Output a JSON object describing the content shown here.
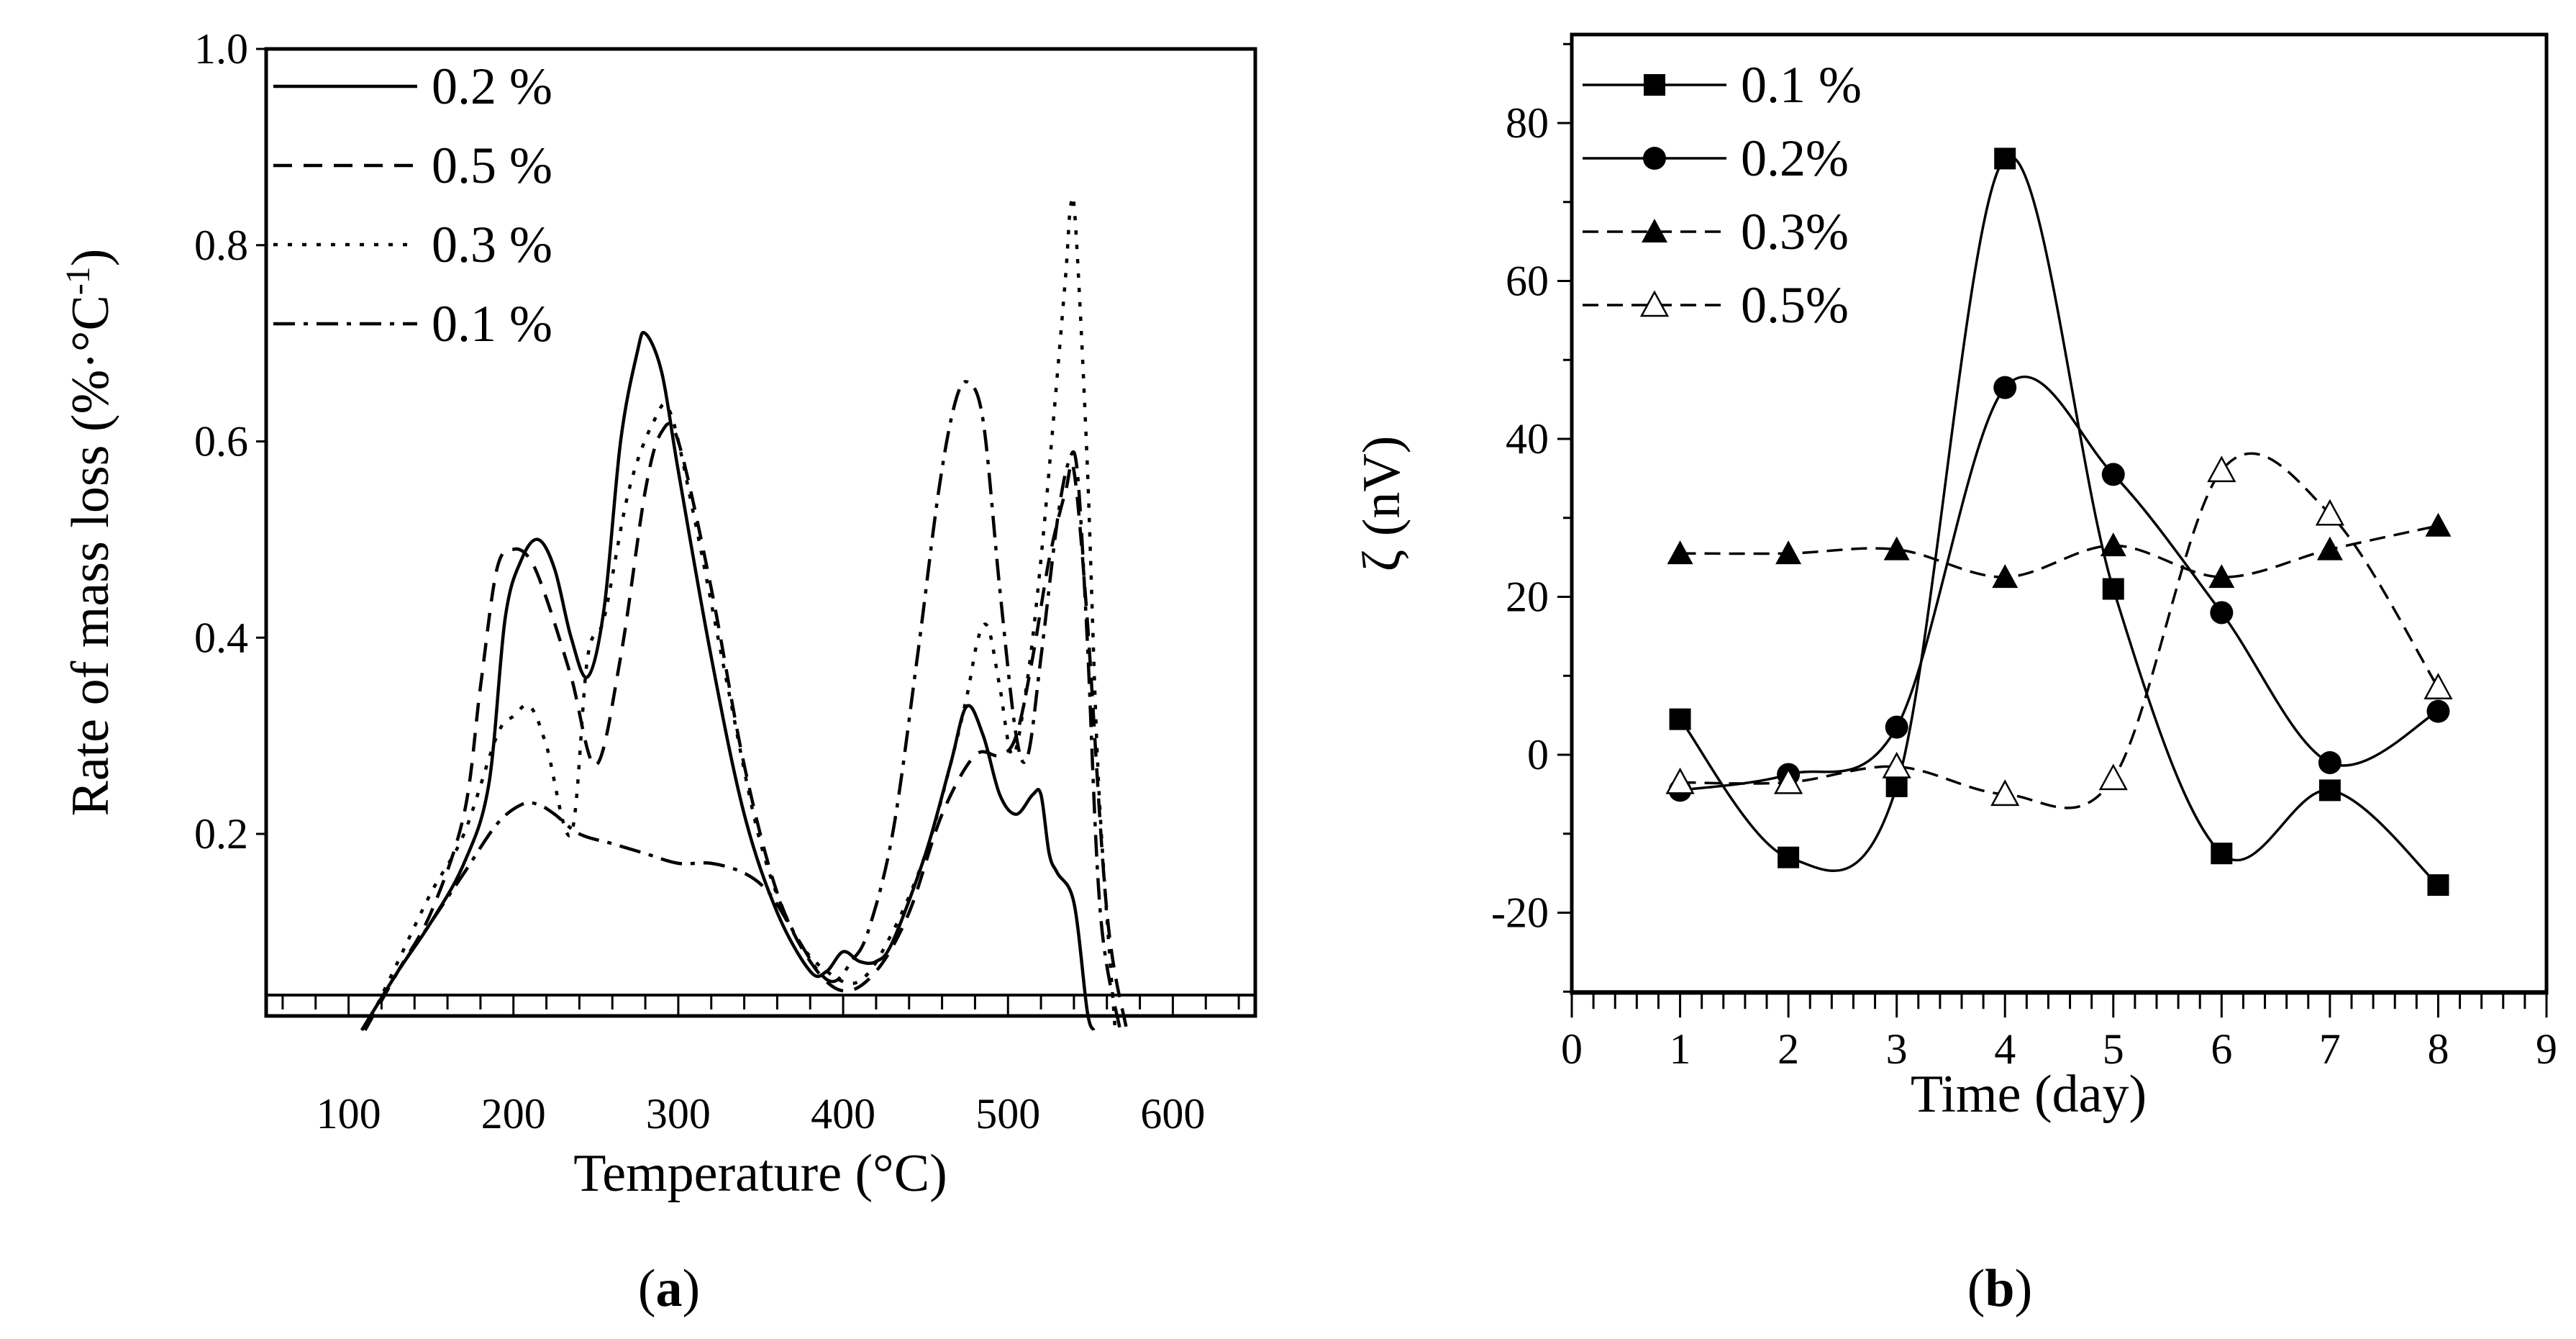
{
  "chart_data": [
    {
      "type": "line",
      "panel": "a",
      "caption": {
        "open": "(",
        "letter": "a",
        "close": ")"
      },
      "xlabel": "Temperature (°C)",
      "ylabel": "Rate of mass loss (%·°C⁻¹)",
      "ylabel_parts": {
        "main": "Rate of mass loss (%·°C",
        "sup": "-1",
        "end": ")"
      },
      "xlim": [
        50,
        650
      ],
      "ylim": [
        0,
        1.0
      ],
      "xticks": [
        100,
        200,
        300,
        400,
        500,
        600
      ],
      "xtick_labels": [
        "100",
        "200",
        "300",
        "400",
        "500",
        "600"
      ],
      "yticks": [
        0.2,
        0.4,
        0.6,
        0.8,
        1.0
      ],
      "ytick_labels": [
        "0.2",
        "0.4",
        "0.6",
        "0.8",
        "1.0"
      ],
      "legend_position": "top-left",
      "series": [
        {
          "name": "0.2 %",
          "style": "solid",
          "x": [
            108,
            130,
            150,
            170,
            185,
            195,
            205,
            215,
            225,
            235,
            245,
            255,
            265,
            275,
            280,
            290,
            300,
            320,
            340,
            360,
            380,
            390,
            400,
            410,
            420,
            430,
            450,
            465,
            475,
            485,
            495,
            505,
            515,
            520,
            525,
            530,
            540,
            548,
            552
          ],
          "y": [
            0.0,
            0.06,
            0.11,
            0.17,
            0.25,
            0.42,
            0.48,
            0.5,
            0.47,
            0.4,
            0.36,
            0.43,
            0.6,
            0.69,
            0.71,
            0.67,
            0.57,
            0.38,
            0.22,
            0.12,
            0.06,
            0.06,
            0.08,
            0.07,
            0.07,
            0.09,
            0.18,
            0.27,
            0.33,
            0.3,
            0.24,
            0.22,
            0.24,
            0.24,
            0.18,
            0.16,
            0.13,
            0.02,
            0.0
          ]
        },
        {
          "name": "0.5 %",
          "style": "dashed",
          "x": [
            110,
            130,
            150,
            170,
            180,
            190,
            200,
            210,
            220,
            235,
            250,
            265,
            280,
            290,
            300,
            320,
            340,
            360,
            380,
            400,
            420,
            440,
            460,
            480,
            495,
            505,
            515,
            525,
            535,
            540,
            548,
            560,
            572
          ],
          "y": [
            0.0,
            0.06,
            0.12,
            0.22,
            0.35,
            0.47,
            0.49,
            0.48,
            0.44,
            0.36,
            0.27,
            0.38,
            0.55,
            0.61,
            0.6,
            0.45,
            0.27,
            0.14,
            0.07,
            0.04,
            0.06,
            0.12,
            0.22,
            0.28,
            0.28,
            0.3,
            0.38,
            0.48,
            0.55,
            0.57,
            0.42,
            0.12,
            0.0
          ]
        },
        {
          "name": "0.3 %",
          "style": "dotted",
          "x": [
            110,
            130,
            150,
            170,
            190,
            200,
            210,
            220,
            235,
            245,
            255,
            270,
            285,
            295,
            310,
            330,
            350,
            370,
            390,
            410,
            430,
            450,
            465,
            475,
            482,
            488,
            495,
            503,
            512,
            520,
            528,
            535,
            538,
            541,
            548,
            555,
            565
          ],
          "y": [
            0.0,
            0.07,
            0.14,
            0.2,
            0.3,
            0.32,
            0.33,
            0.29,
            0.2,
            0.38,
            0.42,
            0.55,
            0.62,
            0.63,
            0.52,
            0.35,
            0.19,
            0.1,
            0.06,
            0.05,
            0.1,
            0.18,
            0.27,
            0.34,
            0.4,
            0.41,
            0.35,
            0.28,
            0.36,
            0.48,
            0.63,
            0.77,
            0.84,
            0.82,
            0.58,
            0.25,
            0.0
          ]
        },
        {
          "name": "0.1 %",
          "style": "dashdot",
          "x": [
            108,
            130,
            150,
            170,
            190,
            205,
            215,
            225,
            240,
            260,
            280,
            300,
            320,
            340,
            355,
            370,
            385,
            395,
            405,
            415,
            430,
            445,
            458,
            468,
            476,
            485,
            495,
            505,
            512,
            520,
            530,
            537,
            542,
            548,
            556,
            568
          ],
          "y": [
            0.0,
            0.06,
            0.11,
            0.16,
            0.21,
            0.23,
            0.23,
            0.22,
            0.2,
            0.19,
            0.18,
            0.17,
            0.17,
            0.16,
            0.14,
            0.1,
            0.06,
            0.05,
            0.07,
            0.1,
            0.2,
            0.38,
            0.55,
            0.64,
            0.66,
            0.62,
            0.45,
            0.3,
            0.28,
            0.38,
            0.52,
            0.58,
            0.57,
            0.4,
            0.12,
            0.0
          ]
        }
      ]
    },
    {
      "type": "line",
      "panel": "b",
      "caption": {
        "open": "(",
        "letter": "b",
        "close": ")"
      },
      "xlabel": "Time (day)",
      "ylabel": "ζ (nV)",
      "xlim": [
        0,
        9
      ],
      "ylim": [
        -30,
        90
      ],
      "xticks": [
        0,
        1,
        2,
        3,
        4,
        5,
        6,
        7,
        8,
        9
      ],
      "xtick_labels": [
        "0",
        "1",
        "2",
        "3",
        "4",
        "5",
        "6",
        "7",
        "8",
        "9"
      ],
      "yticks": [
        -20,
        0,
        20,
        40,
        60,
        80
      ],
      "ytick_labels": [
        "-20",
        "0",
        "20",
        "40",
        "60",
        "80"
      ],
      "legend_position": "top-left",
      "series": [
        {
          "name": "0.1 %",
          "marker": "filled-square",
          "line": "solid",
          "x": [
            1,
            2,
            3,
            4,
            5,
            6,
            7,
            8
          ],
          "y": [
            4.5,
            -13,
            -4,
            75.5,
            21,
            -12.5,
            -4.5,
            -16.5
          ]
        },
        {
          "name": "0.2%",
          "marker": "filled-circle",
          "line": "solid",
          "x": [
            1,
            2,
            3,
            4,
            5,
            6,
            7,
            8
          ],
          "y": [
            -4.5,
            -2.5,
            3.5,
            46.5,
            35.5,
            18,
            -1,
            5.5
          ]
        },
        {
          "name": "0.3%",
          "marker": "filled-triangle",
          "line": "dashed",
          "x": [
            1,
            2,
            3,
            4,
            5,
            6,
            7,
            8
          ],
          "y": [
            25.5,
            25.5,
            26,
            22.5,
            26.5,
            22.5,
            26,
            29
          ]
        },
        {
          "name": "0.5%",
          "marker": "open-triangle",
          "line": "dashed",
          "x": [
            1,
            2,
            3,
            4,
            5,
            6,
            7,
            8
          ],
          "y": [
            -3.5,
            -3.5,
            -1.5,
            -5,
            -3,
            36,
            30.5,
            8.5
          ]
        }
      ]
    }
  ]
}
